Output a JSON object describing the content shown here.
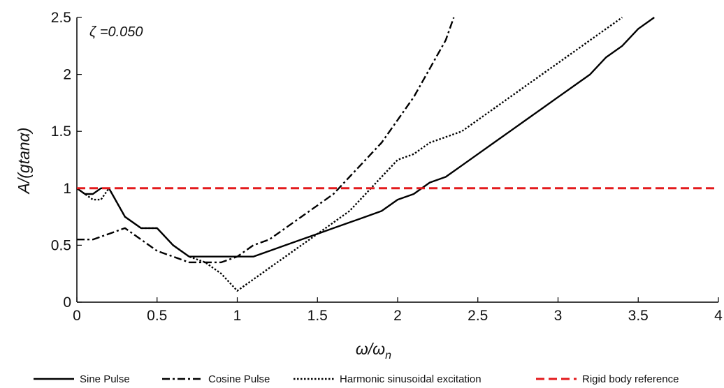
{
  "chart_data": {
    "type": "line",
    "xlabel": "ω/ω",
    "xlabel_sub": "n",
    "ylabel": "A/(gtanα)",
    "annotation": "ζ =0.050",
    "xlim": [
      0,
      4
    ],
    "ylim": [
      0,
      2.5
    ],
    "x_ticks": [
      "0",
      "0.5",
      "1",
      "1.5",
      "2",
      "2.5",
      "3",
      "3.5",
      "4"
    ],
    "y_ticks": [
      "0",
      "0.5",
      "1",
      "1.5",
      "2",
      "2.5"
    ],
    "grid": false,
    "legend_position": "bottom",
    "series": [
      {
        "name": "Sine Pulse",
        "style": "solid",
        "color": "#000000",
        "x": [
          0,
          0.05,
          0.1,
          0.15,
          0.2,
          0.3,
          0.4,
          0.5,
          0.6,
          0.7,
          0.8,
          0.9,
          1.0,
          1.1,
          1.2,
          1.3,
          1.4,
          1.5,
          1.6,
          1.7,
          1.8,
          1.9,
          2.0,
          2.1,
          2.2,
          2.3,
          2.4,
          2.5,
          2.6,
          2.7,
          2.8,
          2.9,
          3.0,
          3.1,
          3.2,
          3.3,
          3.4,
          3.5,
          3.6
        ],
        "values": [
          1.0,
          0.95,
          0.95,
          1.0,
          1.0,
          0.75,
          0.65,
          0.65,
          0.5,
          0.4,
          0.4,
          0.4,
          0.4,
          0.4,
          0.45,
          0.5,
          0.55,
          0.6,
          0.65,
          0.7,
          0.75,
          0.8,
          0.9,
          0.95,
          1.05,
          1.1,
          1.2,
          1.3,
          1.4,
          1.5,
          1.6,
          1.7,
          1.8,
          1.9,
          2.0,
          2.15,
          2.25,
          2.4,
          2.5
        ]
      },
      {
        "name": "Cosine Pulse",
        "style": "dashdot",
        "color": "#000000",
        "x": [
          0,
          0.05,
          0.1,
          0.2,
          0.3,
          0.4,
          0.5,
          0.6,
          0.7,
          0.8,
          0.9,
          1.0,
          1.1,
          1.2,
          1.3,
          1.4,
          1.5,
          1.6,
          1.7,
          1.8,
          1.9,
          2.0,
          2.1,
          2.2,
          2.3,
          2.35
        ],
        "values": [
          0.55,
          0.55,
          0.55,
          0.6,
          0.65,
          0.55,
          0.45,
          0.4,
          0.35,
          0.35,
          0.35,
          0.4,
          0.5,
          0.55,
          0.65,
          0.75,
          0.85,
          0.95,
          1.1,
          1.25,
          1.4,
          1.6,
          1.8,
          2.05,
          2.3,
          2.5
        ]
      },
      {
        "name": "Harmonic sinusoidal excitation",
        "style": "dotted",
        "color": "#000000",
        "x": [
          0,
          0.05,
          0.1,
          0.15,
          0.2,
          0.3,
          0.4,
          0.5,
          0.6,
          0.7,
          0.8,
          0.9,
          1.0,
          1.1,
          1.2,
          1.3,
          1.4,
          1.5,
          1.6,
          1.7,
          1.8,
          1.9,
          2.0,
          2.1,
          2.2,
          2.3,
          2.4,
          2.5,
          2.6,
          2.7,
          2.8,
          2.9,
          3.0,
          3.1,
          3.2,
          3.3,
          3.4
        ],
        "values": [
          1.0,
          0.95,
          0.9,
          0.9,
          1.0,
          0.75,
          0.65,
          0.65,
          0.5,
          0.4,
          0.35,
          0.25,
          0.1,
          0.2,
          0.3,
          0.4,
          0.5,
          0.6,
          0.7,
          0.8,
          0.95,
          1.1,
          1.25,
          1.3,
          1.4,
          1.45,
          1.5,
          1.6,
          1.7,
          1.8,
          1.9,
          2.0,
          2.1,
          2.2,
          2.3,
          2.4,
          2.5
        ]
      },
      {
        "name": "Rigid body reference",
        "style": "dashed",
        "color": "#e31a1c",
        "x": [
          0,
          4
        ],
        "values": [
          1.0,
          1.0
        ]
      }
    ]
  }
}
